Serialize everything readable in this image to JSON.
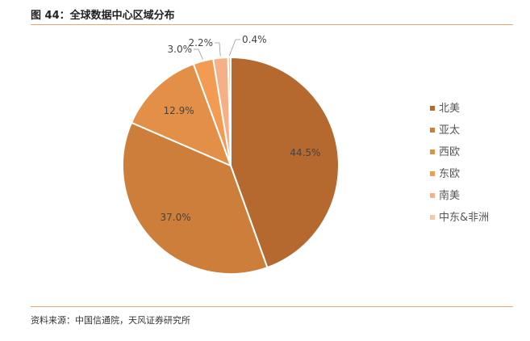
{
  "figure": {
    "title": "图 44：全球数据中心区域分布",
    "source": "资料来源：中国信通院，天风证券研究所"
  },
  "chart_data": {
    "type": "pie",
    "categories": [
      "北美",
      "亚太",
      "西欧",
      "东欧",
      "南美",
      "中东&非洲"
    ],
    "values": [
      44.5,
      37.0,
      12.9,
      3.0,
      2.2,
      0.4
    ],
    "labels": [
      "44.5%",
      "37.0%",
      "12.9%",
      "3.0%",
      "2.2%",
      "0.4%"
    ],
    "colors": [
      "#b5692e",
      "#cd7e3a",
      "#e38f47",
      "#f39b52",
      "#f5b087",
      "#f9c6a5"
    ],
    "legend_position": "right"
  }
}
